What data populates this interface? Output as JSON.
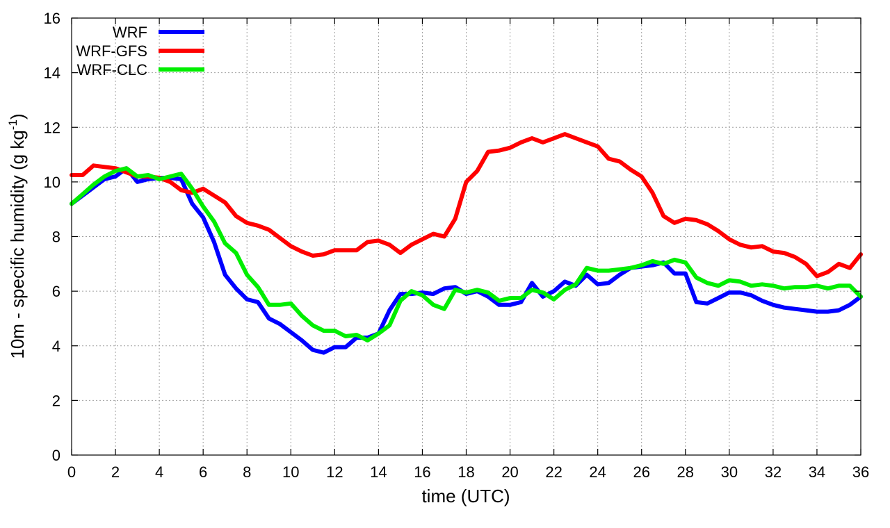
{
  "chart_data": {
    "type": "line",
    "title": "",
    "xlabel": "time (UTC)",
    "ylabel_main": "10m - specific humidity (g kg",
    "ylabel_sup": "-1",
    "ylabel_close": ")",
    "xlim": [
      0,
      36
    ],
    "ylim": [
      0,
      16
    ],
    "xticks": [
      0,
      2,
      4,
      6,
      8,
      10,
      12,
      14,
      16,
      18,
      20,
      22,
      24,
      26,
      28,
      30,
      32,
      34,
      36
    ],
    "yticks": [
      0,
      2,
      4,
      6,
      8,
      10,
      12,
      14,
      16
    ],
    "grid": true,
    "legend_position": "top-left",
    "series": [
      {
        "name": "WRF",
        "color": "#0000ff",
        "x": [
          0,
          0.5,
          1,
          1.5,
          2,
          2.5,
          3,
          3.5,
          4,
          4.5,
          5,
          5.5,
          6,
          6.5,
          7,
          7.5,
          8,
          8.5,
          9,
          9.5,
          10,
          10.5,
          11,
          11.5,
          12,
          12.5,
          13,
          13.5,
          14,
          14.5,
          15,
          15.5,
          16,
          16.5,
          17,
          17.5,
          18,
          18.5,
          19,
          19.5,
          20,
          20.5,
          21,
          21.5,
          22,
          22.5,
          23,
          23.5,
          24,
          24.5,
          25,
          25.5,
          26,
          26.5,
          27,
          27.5,
          28,
          28.5,
          29,
          29.5,
          30,
          30.5,
          31,
          31.5,
          32,
          32.5,
          33,
          33.5,
          34,
          34.5,
          35,
          35.5,
          36
        ],
        "y": [
          9.2,
          9.5,
          9.8,
          10.1,
          10.2,
          10.5,
          10.0,
          10.1,
          10.15,
          10.15,
          10.1,
          9.2,
          8.7,
          7.8,
          6.6,
          6.1,
          5.7,
          5.6,
          5.0,
          4.8,
          4.5,
          4.2,
          3.85,
          3.75,
          3.95,
          3.95,
          4.3,
          4.3,
          4.45,
          5.3,
          5.9,
          5.9,
          5.95,
          5.9,
          6.1,
          6.15,
          5.9,
          6.0,
          5.8,
          5.5,
          5.5,
          5.6,
          6.3,
          5.8,
          6.0,
          6.35,
          6.2,
          6.6,
          6.25,
          6.3,
          6.6,
          6.85,
          6.9,
          6.95,
          7.05,
          6.65,
          6.65,
          5.6,
          5.55,
          5.75,
          5.95,
          5.95,
          5.85,
          5.65,
          5.5,
          5.4,
          5.35,
          5.3,
          5.25,
          5.25,
          5.3,
          5.5,
          5.8
        ]
      },
      {
        "name": "WRF-GFS",
        "color": "#ff0000",
        "x": [
          0,
          0.5,
          1,
          1.5,
          2,
          2.5,
          3,
          3.5,
          4,
          4.5,
          5,
          5.5,
          6,
          6.5,
          7,
          7.5,
          8,
          8.5,
          9,
          9.5,
          10,
          10.5,
          11,
          11.5,
          12,
          12.5,
          13,
          13.5,
          14,
          14.5,
          15,
          15.5,
          16,
          16.5,
          17,
          17.5,
          18,
          18.5,
          19,
          19.5,
          20,
          20.5,
          21,
          21.5,
          22,
          22.5,
          23,
          23.5,
          24,
          24.5,
          25,
          25.5,
          26,
          26.5,
          27,
          27.5,
          28,
          28.5,
          29,
          29.5,
          30,
          30.5,
          31,
          31.5,
          32,
          32.5,
          33,
          33.5,
          34,
          34.5,
          35,
          35.5,
          36
        ],
        "y": [
          10.25,
          10.25,
          10.6,
          10.55,
          10.5,
          10.35,
          10.2,
          10.2,
          10.15,
          10.0,
          9.7,
          9.6,
          9.75,
          9.5,
          9.25,
          8.75,
          8.5,
          8.4,
          8.25,
          7.95,
          7.65,
          7.45,
          7.3,
          7.35,
          7.5,
          7.5,
          7.5,
          7.8,
          7.85,
          7.7,
          7.4,
          7.7,
          7.9,
          8.1,
          8.0,
          8.65,
          10.0,
          10.4,
          11.1,
          11.15,
          11.25,
          11.45,
          11.6,
          11.45,
          11.6,
          11.75,
          11.6,
          11.45,
          11.3,
          10.85,
          10.75,
          10.45,
          10.2,
          9.6,
          8.75,
          8.5,
          8.65,
          8.6,
          8.45,
          8.2,
          7.9,
          7.7,
          7.6,
          7.65,
          7.45,
          7.4,
          7.25,
          7.0,
          6.55,
          6.7,
          7.0,
          6.85,
          7.35
        ]
      },
      {
        "name": "WRF-CLC",
        "color": "#00ee00",
        "x": [
          0,
          0.5,
          1,
          1.5,
          2,
          2.5,
          3,
          3.5,
          4,
          4.5,
          5,
          5.5,
          6,
          6.5,
          7,
          7.5,
          8,
          8.5,
          9,
          9.5,
          10,
          10.5,
          11,
          11.5,
          12,
          12.5,
          13,
          13.5,
          14,
          14.5,
          15,
          15.5,
          16,
          16.5,
          17,
          17.5,
          18,
          18.5,
          19,
          19.5,
          20,
          20.5,
          21,
          21.5,
          22,
          22.5,
          23,
          23.5,
          24,
          24.5,
          25,
          25.5,
          26,
          26.5,
          27,
          27.5,
          28,
          28.5,
          29,
          29.5,
          30,
          30.5,
          31,
          31.5,
          32,
          32.5,
          33,
          33.5,
          34,
          34.5,
          35,
          35.5,
          36
        ],
        "y": [
          9.2,
          9.55,
          9.9,
          10.2,
          10.4,
          10.5,
          10.2,
          10.25,
          10.1,
          10.2,
          10.3,
          9.75,
          9.1,
          8.55,
          7.75,
          7.4,
          6.6,
          6.15,
          5.5,
          5.5,
          5.55,
          5.1,
          4.75,
          4.55,
          4.55,
          4.35,
          4.4,
          4.2,
          4.45,
          4.75,
          5.65,
          6.0,
          5.85,
          5.5,
          5.35,
          6.05,
          5.95,
          6.05,
          5.95,
          5.65,
          5.75,
          5.75,
          6.05,
          5.95,
          5.7,
          6.05,
          6.25,
          6.85,
          6.75,
          6.75,
          6.8,
          6.85,
          6.95,
          7.1,
          7.0,
          7.15,
          7.05,
          6.5,
          6.3,
          6.2,
          6.4,
          6.35,
          6.2,
          6.25,
          6.2,
          6.1,
          6.15,
          6.15,
          6.2,
          6.1,
          6.2,
          6.2,
          5.8
        ]
      }
    ]
  }
}
